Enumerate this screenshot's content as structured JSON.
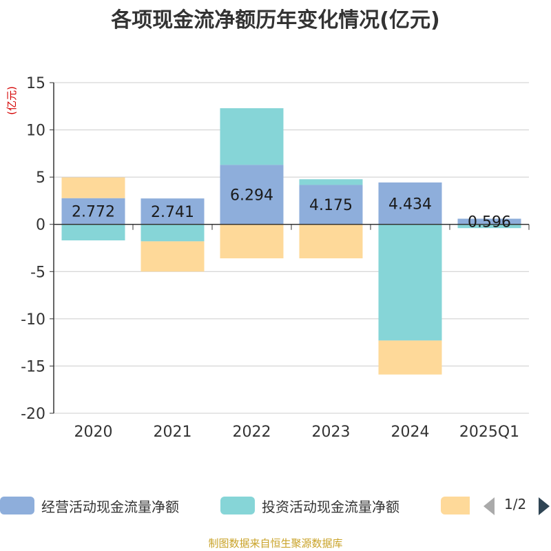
{
  "title": "各项现金流净额历年变化情况(亿元)",
  "source": "制图数据来自恒生聚源数据库",
  "legend_pager": "1/2",
  "chart_data": {
    "type": "bar",
    "stacked": true,
    "title": "各项现金流净额历年变化情况(亿元)",
    "ylabel": "(亿元)",
    "ylim": [
      -20,
      15
    ],
    "yticks": [
      15,
      10,
      5,
      0,
      -5,
      -10,
      -15,
      -20
    ],
    "grid": true,
    "categories": [
      "2020",
      "2021",
      "2022",
      "2023",
      "2024",
      "2025Q1"
    ],
    "series": [
      {
        "name": "经营活动现金流量净额",
        "color": "#8eaedb",
        "values": [
          2.772,
          2.741,
          6.294,
          4.175,
          4.434,
          0.596
        ],
        "labels": [
          "2.772",
          "2.741",
          "6.294",
          "4.175",
          "4.434",
          "0.596"
        ]
      },
      {
        "name": "投资活动现金流量净额",
        "color": "#86d5d7",
        "values": [
          -1.7,
          -1.8,
          6.0,
          0.6,
          -12.3,
          -0.4
        ]
      },
      {
        "name": "",
        "color": "#fed999",
        "values": [
          2.2,
          -3.2,
          -3.6,
          -3.6,
          -3.6,
          0
        ]
      }
    ]
  }
}
